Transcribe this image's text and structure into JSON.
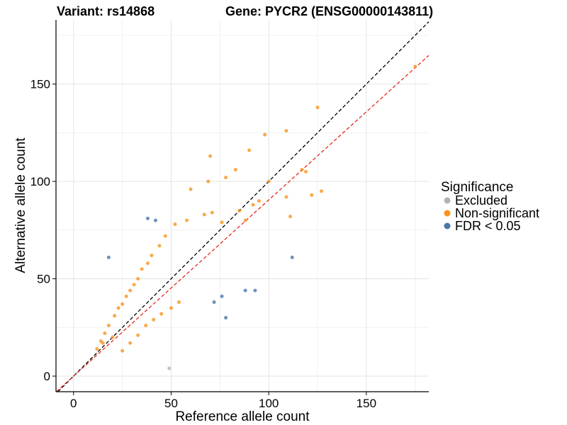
{
  "chart_data": {
    "type": "scatter",
    "title_left": "Variant: rs14868",
    "title_right": "Gene: PYCR2 (ENSG00000143811)",
    "xlabel": "Reference allele count",
    "ylabel": "Alternative allele count",
    "xlim": [
      -9,
      182
    ],
    "ylim": [
      -8,
      183
    ],
    "x_ticks": [
      0,
      50,
      100,
      150
    ],
    "y_ticks": [
      0,
      50,
      100,
      150
    ],
    "grid": true,
    "legend": {
      "title": "Significance",
      "placement": "right",
      "entries": [
        {
          "label": "Excluded",
          "color": "#b3b3b3"
        },
        {
          "label": "Non-significant",
          "color": "#f7941d"
        },
        {
          "label": "FDR < 0.05",
          "color": "#4a77aa"
        }
      ]
    },
    "reference_lines": [
      {
        "description": "identity line y = x",
        "slope": 1.0,
        "intercept": 0,
        "color": "#000000",
        "dash": "dashed"
      },
      {
        "description": "fitted ratio line",
        "slope": 0.905,
        "intercept": 0,
        "color": "#e8291c",
        "dash": "dashed"
      }
    ],
    "series": [
      {
        "name": "Excluded",
        "color": "#b3b3b3",
        "points": [
          [
            49,
            4
          ]
        ]
      },
      {
        "name": "FDR < 0.05",
        "color": "#4a77aa",
        "points": [
          [
            18,
            61
          ],
          [
            38,
            81
          ],
          [
            42,
            80
          ],
          [
            112,
            61
          ],
          [
            72,
            38
          ],
          [
            76,
            41
          ],
          [
            78,
            30
          ],
          [
            88,
            44
          ],
          [
            93,
            44
          ]
        ]
      },
      {
        "name": "Non-significant",
        "color": "#f7941d",
        "points": [
          [
            175,
            159
          ],
          [
            125,
            138
          ],
          [
            109,
            126
          ],
          [
            98,
            124
          ],
          [
            90,
            116
          ],
          [
            70,
            113
          ],
          [
            83,
            106
          ],
          [
            117,
            106
          ],
          [
            119,
            105
          ],
          [
            127,
            95
          ],
          [
            122,
            93
          ],
          [
            109,
            92
          ],
          [
            111,
            82
          ],
          [
            100,
            100
          ],
          [
            95,
            90
          ],
          [
            78,
            102
          ],
          [
            69,
            100
          ],
          [
            60,
            96
          ],
          [
            92,
            88
          ],
          [
            85,
            85
          ],
          [
            88,
            80
          ],
          [
            76,
            79
          ],
          [
            71,
            84
          ],
          [
            67,
            83
          ],
          [
            58,
            80
          ],
          [
            52,
            78
          ],
          [
            47,
            72
          ],
          [
            44,
            67
          ],
          [
            40,
            62
          ],
          [
            38,
            58
          ],
          [
            35,
            55
          ],
          [
            33,
            50
          ],
          [
            31,
            47
          ],
          [
            29,
            44
          ],
          [
            27,
            41
          ],
          [
            25,
            37
          ],
          [
            23,
            35
          ],
          [
            21,
            31
          ],
          [
            18,
            26
          ],
          [
            16,
            22
          ],
          [
            14,
            18
          ],
          [
            12,
            14
          ],
          [
            15,
            17
          ],
          [
            20,
            20
          ],
          [
            25,
            13
          ],
          [
            29,
            17
          ],
          [
            33,
            21
          ],
          [
            37,
            26
          ],
          [
            41,
            29
          ],
          [
            45,
            32
          ],
          [
            50,
            35
          ],
          [
            54,
            38
          ]
        ]
      }
    ]
  }
}
